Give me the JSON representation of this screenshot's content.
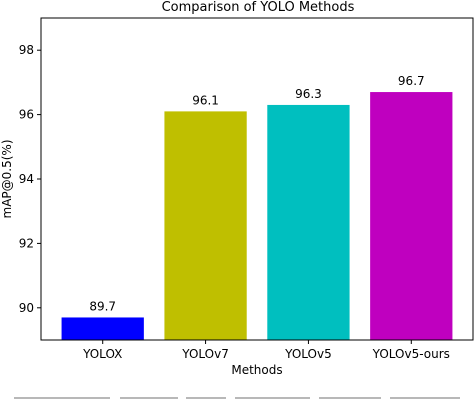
{
  "chart_data": {
    "type": "bar",
    "title": "Comparison of YOLO Methods",
    "xlabel": "Methods",
    "ylabel": "mAP@0.5(%)",
    "categories": [
      "YOLOX",
      "YOLOv7",
      "YOLOv5",
      "YOLOv5-ours"
    ],
    "values": [
      89.7,
      96.1,
      96.3,
      96.7
    ],
    "value_labels": [
      "89.7",
      "96.1",
      "96.3",
      "96.7"
    ],
    "colors": [
      "#0000ff",
      "#bfbf00",
      "#00bfbf",
      "#bf00bf"
    ],
    "ylim": [
      89.0,
      99.0
    ],
    "yticks": [
      90,
      92,
      94,
      96,
      98
    ],
    "ytick_labels": [
      "90",
      "92",
      "94",
      "96",
      "98"
    ],
    "grid": false,
    "legend": "none"
  }
}
